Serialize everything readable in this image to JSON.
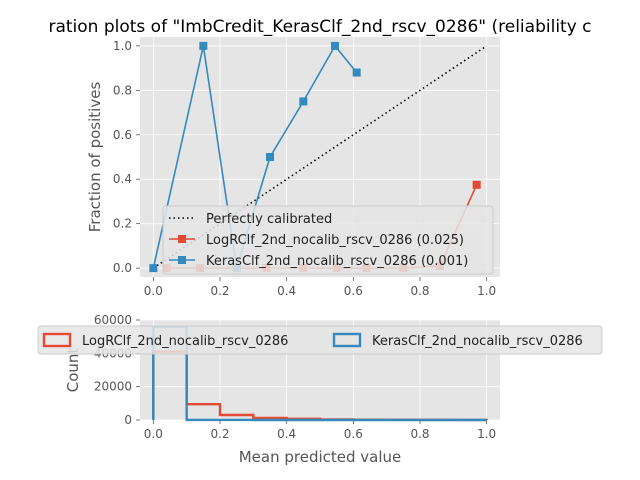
{
  "title": "ration plots of \"ImbCredit_KerasClf_2nd_rscv_0286\" (reliability c",
  "colors": {
    "logr": "#e24a33",
    "keras": "#348abd",
    "ref": "#000000",
    "panel_bg": "#e5e5e5",
    "grid": "#ffffff"
  },
  "chart_data": [
    {
      "type": "line",
      "ylabel": "Fraction of positives",
      "xlim": [
        -0.04,
        1.04
      ],
      "ylim": [
        -0.04,
        1.04
      ],
      "xticks": [
        "0.0",
        "0.2",
        "0.4",
        "0.6",
        "0.8",
        "1.0"
      ],
      "yticks": [
        "0.0",
        "0.2",
        "0.4",
        "0.6",
        "0.8",
        "1.0"
      ],
      "grid": true,
      "legend_position": "lower-right",
      "series": [
        {
          "name": "Perfectly calibrated",
          "style": "dotted",
          "x": [
            0,
            1
          ],
          "y": [
            0,
            1
          ]
        },
        {
          "name": "LogRClf_2nd_nocalib_rscv_0286 (0.025)",
          "marker": "square",
          "x": [
            0.04,
            0.14,
            0.25,
            0.34,
            0.45,
            0.55,
            0.64,
            0.75,
            0.86,
            0.97
          ],
          "y": [
            0.0,
            0.0,
            0.0,
            0.0,
            0.0,
            0.0,
            0.0,
            0.0,
            0.01,
            0.375
          ]
        },
        {
          "name": "KerasClf_2nd_nocalib_rscv_0286 (0.001)",
          "marker": "square",
          "x": [
            0.0,
            0.15,
            0.25,
            0.35,
            0.45,
            0.545,
            0.61
          ],
          "y": [
            0.0,
            1.0,
            0.0,
            0.5,
            0.75,
            1.0,
            0.88
          ]
        }
      ]
    },
    {
      "type": "histogram",
      "xlabel": "Mean predicted value",
      "ylabel": "Count",
      "xlim": [
        -0.04,
        1.04
      ],
      "ylim": [
        0,
        60000
      ],
      "xticks": [
        "0.0",
        "0.2",
        "0.4",
        "0.6",
        "0.8",
        "1.0"
      ],
      "yticks": [
        "0",
        "20000",
        "40000",
        "60000"
      ],
      "grid": true,
      "legend_position": "upper-center",
      "bins": [
        0,
        0.1,
        0.2,
        0.3,
        0.4,
        0.5,
        0.6,
        0.7,
        0.8,
        0.9,
        1.0
      ],
      "series": [
        {
          "name": "LogRClf_2nd_nocalib_rscv_0286",
          "counts": [
            41000,
            9500,
            3000,
            1200,
            700,
            300,
            150,
            100,
            80,
            50
          ]
        },
        {
          "name": "KerasClf_2nd_nocalib_rscv_0286",
          "counts": [
            56000,
            20,
            10,
            5,
            5,
            5,
            0,
            0,
            0,
            0
          ]
        }
      ]
    }
  ]
}
